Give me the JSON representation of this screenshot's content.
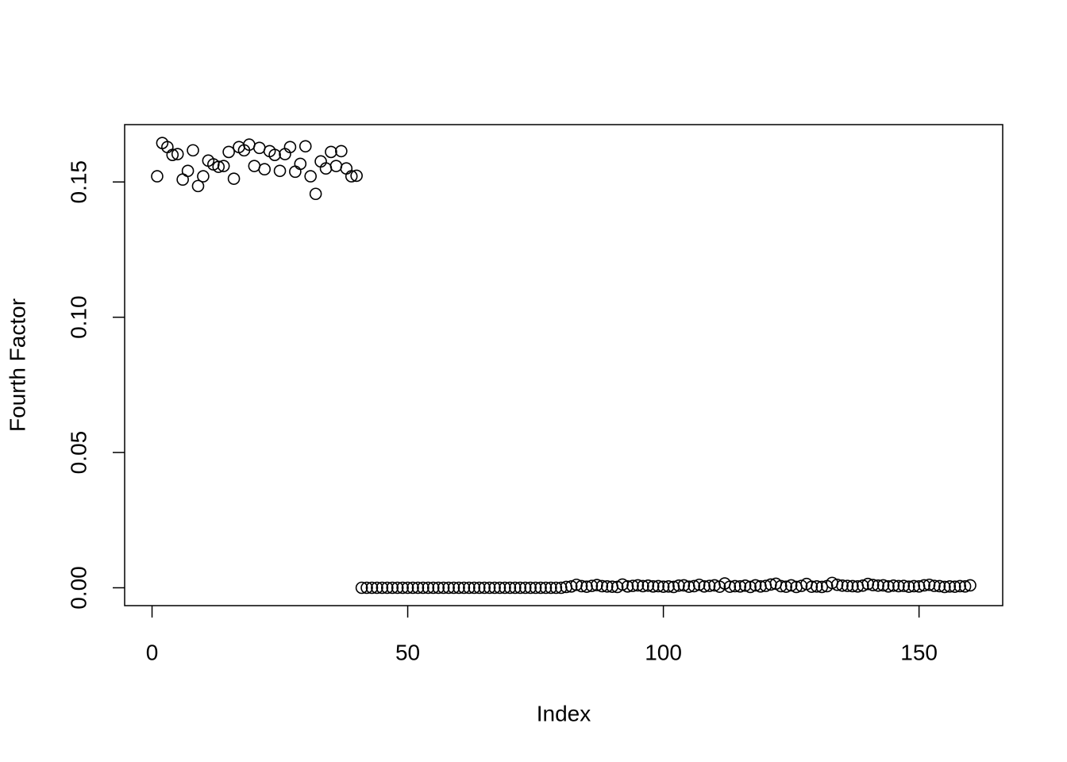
{
  "chart_data": {
    "type": "scatter",
    "x_label": "Index",
    "y_label": "Fourth Factor",
    "x": [
      1,
      2,
      3,
      4,
      5,
      6,
      7,
      8,
      9,
      10,
      11,
      12,
      13,
      14,
      15,
      16,
      17,
      18,
      19,
      20,
      21,
      22,
      23,
      24,
      25,
      26,
      27,
      28,
      29,
      30,
      31,
      32,
      33,
      34,
      35,
      36,
      37,
      38,
      39,
      40,
      41,
      42,
      43,
      44,
      45,
      46,
      47,
      48,
      49,
      50,
      51,
      52,
      53,
      54,
      55,
      56,
      57,
      58,
      59,
      60,
      61,
      62,
      63,
      64,
      65,
      66,
      67,
      68,
      69,
      70,
      71,
      72,
      73,
      74,
      75,
      76,
      77,
      78,
      79,
      80,
      81,
      82,
      83,
      84,
      85,
      86,
      87,
      88,
      89,
      90,
      91,
      92,
      93,
      94,
      95,
      96,
      97,
      98,
      99,
      100,
      101,
      102,
      103,
      104,
      105,
      106,
      107,
      108,
      109,
      110,
      111,
      112,
      113,
      114,
      115,
      116,
      117,
      118,
      119,
      120,
      121,
      122,
      123,
      124,
      125,
      126,
      127,
      128,
      129,
      130,
      131,
      132,
      133,
      134,
      135,
      136,
      137,
      138,
      139,
      140,
      141,
      142,
      143,
      144,
      145,
      146,
      147,
      148,
      149,
      150,
      151,
      152,
      153,
      154,
      155,
      156,
      157,
      158,
      159,
      160
    ],
    "values": [
      0.1521,
      0.1644,
      0.1629,
      0.16,
      0.1603,
      0.1509,
      0.1541,
      0.1617,
      0.1485,
      0.1521,
      0.1579,
      0.1565,
      0.1556,
      0.1559,
      0.1611,
      0.1512,
      0.1629,
      0.1617,
      0.1638,
      0.1559,
      0.1626,
      0.1547,
      0.1614,
      0.16,
      0.1541,
      0.1603,
      0.1629,
      0.1538,
      0.1567,
      0.1632,
      0.1521,
      0.1456,
      0.1576,
      0.155,
      0.1611,
      0.1559,
      0.1614,
      0.155,
      0.1521,
      0.1523,
      0,
      0,
      0,
      0,
      0,
      0,
      0,
      0,
      0,
      0,
      0,
      0,
      0,
      0,
      0,
      0,
      0,
      0,
      0,
      0,
      0,
      0,
      0,
      0,
      0,
      0,
      0,
      0,
      0,
      0,
      0,
      0,
      0,
      0,
      0,
      0,
      0,
      0,
      0,
      0,
      0.0003,
      0.0005,
      0.0011,
      0.0006,
      0.0004,
      0.0007,
      0.001,
      0.0006,
      0.0005,
      0.0004,
      0.0003,
      0.0012,
      0.0005,
      0.0007,
      0.0009,
      0.0006,
      0.0008,
      0.0005,
      0.0006,
      0.0004,
      0.0005,
      0.0003,
      0.0008,
      0.0009,
      0.0004,
      0.0006,
      0.0011,
      0.0005,
      0.0007,
      0.0009,
      0.0004,
      0.0016,
      0.0004,
      0.0006,
      0.0005,
      0.0008,
      0.0003,
      0.0009,
      0.0005,
      0.0007,
      0.0012,
      0.0015,
      0.0006,
      0.0004,
      0.0009,
      0.0003,
      0.0007,
      0.0014,
      0.0004,
      0.0005,
      0.0003,
      0.0006,
      0.0018,
      0.0011,
      0.0008,
      0.0007,
      0.0006,
      0.0005,
      0.0008,
      0.0014,
      0.001,
      0.0008,
      0.0009,
      0.0005,
      0.0008,
      0.0006,
      0.0007,
      0.0004,
      0.0006,
      0.0005,
      0.0009,
      0.0011,
      0.0007,
      0.0006,
      0.0003,
      0.0005,
      0.0004,
      0.0006,
      0.0005,
      0.0009
    ],
    "color": "#000000",
    "xlim": [
      -5.36,
      166.36
    ],
    "ylim": [
      -0.0066,
      0.1712
    ],
    "xticks": [
      0,
      50,
      100,
      150
    ],
    "yticks": [
      {
        "value": 0,
        "label": "0.00"
      },
      {
        "value": 0.05,
        "label": "0.05"
      },
      {
        "value": 0.1,
        "label": "0.10"
      },
      {
        "value": 0.15,
        "label": "0.15"
      }
    ]
  }
}
